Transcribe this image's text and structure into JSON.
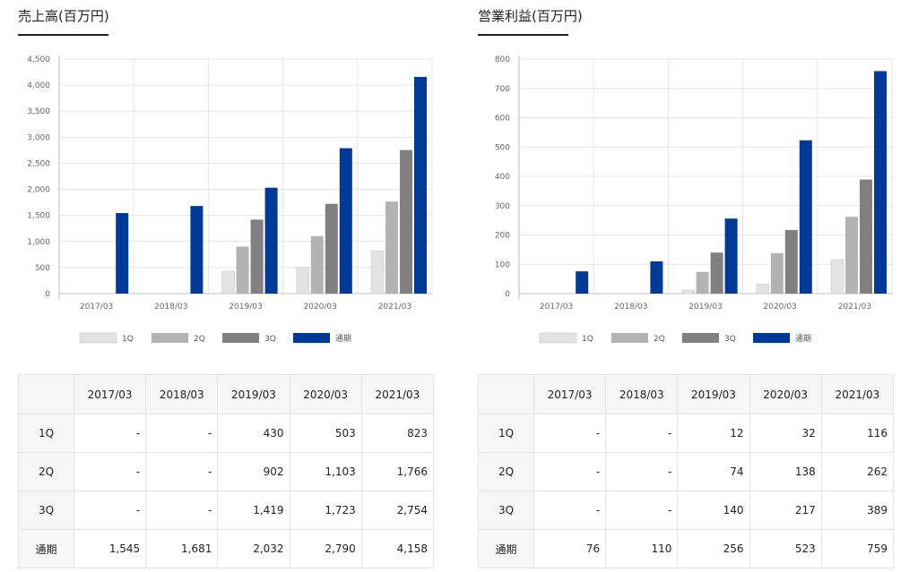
{
  "chart_data": [
    {
      "type": "bar",
      "title": "売上高(百万円)",
      "categories": [
        "2017/03",
        "2018/03",
        "2019/03",
        "2020/03",
        "2021/03"
      ],
      "series": [
        {
          "name": "1Q",
          "values": [
            null,
            null,
            430,
            503,
            823
          ]
        },
        {
          "name": "2Q",
          "values": [
            null,
            null,
            902,
            1103,
            1766
          ]
        },
        {
          "name": "3Q",
          "values": [
            null,
            null,
            1419,
            1723,
            2754
          ]
        },
        {
          "name": "通期",
          "values": [
            1545,
            1681,
            2032,
            2790,
            4158
          ]
        }
      ],
      "ylim": [
        0,
        4500
      ],
      "yticks": [
        0,
        500,
        1000,
        1500,
        2000,
        2500,
        3000,
        3500,
        4000,
        4500
      ],
      "ytick_labels": [
        "0",
        "500",
        "1,000",
        "1,500",
        "2,000",
        "2,500",
        "3,000",
        "3,500",
        "4,000",
        "4,500"
      ],
      "grid": true,
      "legend": "bottom",
      "colors": [
        "#e3e3e3",
        "#b3b3b3",
        "#808080",
        "#003a96"
      ]
    },
    {
      "type": "bar",
      "title": "営業利益(百万円)",
      "categories": [
        "2017/03",
        "2018/03",
        "2019/03",
        "2020/03",
        "2021/03"
      ],
      "series": [
        {
          "name": "1Q",
          "values": [
            null,
            null,
            12,
            32,
            116
          ]
        },
        {
          "name": "2Q",
          "values": [
            null,
            null,
            74,
            138,
            262
          ]
        },
        {
          "name": "3Q",
          "values": [
            null,
            null,
            140,
            217,
            389
          ]
        },
        {
          "name": "通期",
          "values": [
            76,
            110,
            256,
            523,
            759
          ]
        }
      ],
      "ylim": [
        0,
        800
      ],
      "yticks": [
        0,
        100,
        200,
        300,
        400,
        500,
        600,
        700,
        800
      ],
      "ytick_labels": [
        "0",
        "100",
        "200",
        "300",
        "400",
        "500",
        "600",
        "700",
        "800"
      ],
      "grid": true,
      "legend": "bottom",
      "colors": [
        "#e3e3e3",
        "#b3b3b3",
        "#808080",
        "#003a96"
      ]
    }
  ],
  "tables": [
    {
      "header": [
        "",
        "2017/03",
        "2018/03",
        "2019/03",
        "2020/03",
        "2021/03"
      ],
      "rows": [
        [
          "1Q",
          "-",
          "-",
          "430",
          "503",
          "823"
        ],
        [
          "2Q",
          "-",
          "-",
          "902",
          "1,103",
          "1,766"
        ],
        [
          "3Q",
          "-",
          "-",
          "1,419",
          "1,723",
          "2,754"
        ],
        [
          "通期",
          "1,545",
          "1,681",
          "2,032",
          "2,790",
          "4,158"
        ]
      ]
    },
    {
      "header": [
        "",
        "2017/03",
        "2018/03",
        "2019/03",
        "2020/03",
        "2021/03"
      ],
      "rows": [
        [
          "1Q",
          "-",
          "-",
          "12",
          "32",
          "116"
        ],
        [
          "2Q",
          "-",
          "-",
          "74",
          "138",
          "262"
        ],
        [
          "3Q",
          "-",
          "-",
          "140",
          "217",
          "389"
        ],
        [
          "通期",
          "76",
          "110",
          "256",
          "523",
          "759"
        ]
      ]
    }
  ]
}
